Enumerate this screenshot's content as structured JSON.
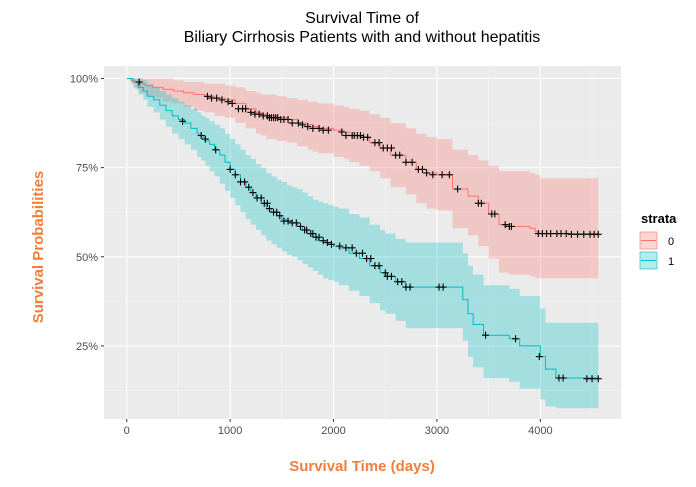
{
  "chart_data": {
    "type": "line",
    "title_line1": "Survival Time of",
    "title_line2": "Biliary Cirrhosis Patients with and without hepatitis",
    "xlabel": "Survival Time (days)",
    "ylabel": "Survival Probabilities",
    "xlim": [
      -220,
      4780
    ],
    "ylim": [
      0.045,
      1.035
    ],
    "x_ticks": [
      0,
      1000,
      2000,
      3000,
      4000
    ],
    "x_tick_labels": [
      "0",
      "1000",
      "2000",
      "3000",
      "4000"
    ],
    "y_ticks": [
      0.25,
      0.5,
      0.75,
      1.0
    ],
    "y_tick_labels": [
      "25%",
      "50%",
      "75%",
      "100%"
    ],
    "grid": true,
    "legend": {
      "title": "strata",
      "position": "right"
    },
    "axis_title_color": "#f07f3c",
    "series": [
      {
        "name": "0",
        "color": "#f8766d",
        "x": [
          0,
          40,
          80,
          130,
          180,
          250,
          350,
          450,
          550,
          650,
          750,
          850,
          950,
          1050,
          1150,
          1250,
          1300,
          1350,
          1450,
          1550,
          1650,
          1750,
          1800,
          1850,
          2000,
          2100,
          2150,
          2250,
          2350,
          2450,
          2550,
          2700,
          2800,
          2900,
          3000,
          3150,
          3300,
          3400,
          3500,
          3600,
          3700,
          3900,
          3950,
          4000,
          4560
        ],
        "y": [
          1.0,
          0.995,
          0.99,
          0.985,
          0.98,
          0.975,
          0.97,
          0.965,
          0.96,
          0.955,
          0.95,
          0.945,
          0.94,
          0.93,
          0.915,
          0.905,
          0.9,
          0.895,
          0.89,
          0.885,
          0.875,
          0.87,
          0.865,
          0.86,
          0.855,
          0.85,
          0.84,
          0.835,
          0.82,
          0.805,
          0.785,
          0.765,
          0.745,
          0.735,
          0.73,
          0.69,
          0.67,
          0.65,
          0.62,
          0.59,
          0.585,
          0.58,
          0.57,
          0.565,
          0.563
        ],
        "lower": [
          1.0,
          0.985,
          0.97,
          0.96,
          0.95,
          0.945,
          0.935,
          0.93,
          0.92,
          0.91,
          0.905,
          0.895,
          0.89,
          0.875,
          0.86,
          0.845,
          0.84,
          0.83,
          0.825,
          0.82,
          0.81,
          0.8,
          0.795,
          0.79,
          0.78,
          0.775,
          0.765,
          0.755,
          0.74,
          0.72,
          0.695,
          0.675,
          0.65,
          0.635,
          0.63,
          0.58,
          0.56,
          0.53,
          0.495,
          0.455,
          0.45,
          0.445,
          0.44,
          0.44,
          0.44
        ],
        "upper": [
          1.0,
          1.0,
          1.0,
          1.0,
          1.0,
          1.0,
          1.0,
          0.995,
          0.99,
          0.99,
          0.985,
          0.985,
          0.98,
          0.975,
          0.965,
          0.96,
          0.955,
          0.955,
          0.95,
          0.945,
          0.94,
          0.935,
          0.935,
          0.93,
          0.925,
          0.92,
          0.915,
          0.91,
          0.9,
          0.89,
          0.875,
          0.86,
          0.845,
          0.835,
          0.83,
          0.8,
          0.785,
          0.77,
          0.755,
          0.74,
          0.74,
          0.735,
          0.73,
          0.72,
          0.72
        ],
        "censor_x": [
          780,
          820,
          870,
          920,
          980,
          1020,
          1080,
          1120,
          1150,
          1200,
          1240,
          1280,
          1320,
          1360,
          1380,
          1400,
          1420,
          1440,
          1460,
          1490,
          1520,
          1560,
          1600,
          1660,
          1700,
          1750,
          1800,
          1860,
          1900,
          1950,
          2080,
          2120,
          2180,
          2200,
          2230,
          2260,
          2290,
          2330,
          2400,
          2440,
          2480,
          2520,
          2560,
          2600,
          2640,
          2700,
          2760,
          2820,
          2860,
          2900,
          2960,
          3050,
          3120,
          3200,
          3400,
          3430,
          3530,
          3560,
          3660,
          3700,
          3720,
          3980,
          4020,
          4060,
          4100,
          4160,
          4200,
          4250,
          4300,
          4360,
          4420,
          4480,
          4520,
          4560
        ],
        "censor_y": [
          0.95,
          0.945,
          0.945,
          0.94,
          0.935,
          0.93,
          0.915,
          0.915,
          0.915,
          0.905,
          0.9,
          0.9,
          0.895,
          0.895,
          0.89,
          0.89,
          0.89,
          0.89,
          0.89,
          0.885,
          0.885,
          0.885,
          0.875,
          0.875,
          0.87,
          0.865,
          0.86,
          0.86,
          0.855,
          0.855,
          0.85,
          0.84,
          0.84,
          0.84,
          0.84,
          0.84,
          0.835,
          0.835,
          0.82,
          0.82,
          0.805,
          0.805,
          0.805,
          0.785,
          0.785,
          0.765,
          0.765,
          0.745,
          0.745,
          0.735,
          0.73,
          0.73,
          0.73,
          0.69,
          0.65,
          0.65,
          0.62,
          0.62,
          0.59,
          0.585,
          0.585,
          0.565,
          0.565,
          0.565,
          0.565,
          0.565,
          0.565,
          0.565,
          0.563,
          0.563,
          0.563,
          0.563,
          0.563,
          0.563
        ]
      },
      {
        "name": "1",
        "color": "#00bfc4",
        "x": [
          0,
          60,
          110,
          160,
          200,
          260,
          320,
          380,
          440,
          500,
          560,
          620,
          680,
          720,
          760,
          800,
          850,
          900,
          950,
          1000,
          1050,
          1100,
          1150,
          1200,
          1250,
          1300,
          1350,
          1400,
          1450,
          1500,
          1550,
          1600,
          1650,
          1700,
          1750,
          1800,
          1850,
          1900,
          1950,
          2000,
          2050,
          2150,
          2250,
          2350,
          2450,
          2500,
          2600,
          2700,
          3000,
          3250,
          3300,
          3350,
          3450,
          3700,
          3800,
          4000,
          4050,
          4150,
          4560
        ],
        "y": [
          1.0,
          0.99,
          0.975,
          0.965,
          0.95,
          0.94,
          0.925,
          0.91,
          0.895,
          0.885,
          0.875,
          0.86,
          0.845,
          0.835,
          0.825,
          0.815,
          0.8,
          0.785,
          0.765,
          0.745,
          0.73,
          0.71,
          0.695,
          0.68,
          0.665,
          0.65,
          0.635,
          0.625,
          0.615,
          0.605,
          0.6,
          0.595,
          0.585,
          0.575,
          0.565,
          0.555,
          0.545,
          0.54,
          0.535,
          0.53,
          0.525,
          0.51,
          0.495,
          0.475,
          0.455,
          0.445,
          0.43,
          0.415,
          0.415,
          0.38,
          0.34,
          0.31,
          0.28,
          0.27,
          0.25,
          0.22,
          0.185,
          0.16,
          0.158
        ],
        "lower": [
          1.0,
          0.975,
          0.955,
          0.94,
          0.92,
          0.905,
          0.885,
          0.865,
          0.845,
          0.83,
          0.815,
          0.8,
          0.78,
          0.77,
          0.755,
          0.74,
          0.725,
          0.705,
          0.685,
          0.665,
          0.645,
          0.625,
          0.605,
          0.59,
          0.575,
          0.56,
          0.545,
          0.535,
          0.525,
          0.515,
          0.505,
          0.5,
          0.49,
          0.48,
          0.47,
          0.46,
          0.45,
          0.44,
          0.435,
          0.43,
          0.42,
          0.405,
          0.39,
          0.37,
          0.35,
          0.34,
          0.32,
          0.3,
          0.3,
          0.265,
          0.22,
          0.19,
          0.16,
          0.15,
          0.13,
          0.1,
          0.08,
          0.075,
          0.075
        ],
        "upper": [
          1.0,
          1.0,
          1.0,
          0.995,
          0.985,
          0.975,
          0.965,
          0.955,
          0.945,
          0.935,
          0.925,
          0.915,
          0.905,
          0.895,
          0.89,
          0.88,
          0.87,
          0.86,
          0.845,
          0.83,
          0.815,
          0.8,
          0.785,
          0.775,
          0.76,
          0.75,
          0.735,
          0.725,
          0.715,
          0.71,
          0.7,
          0.695,
          0.69,
          0.68,
          0.67,
          0.66,
          0.655,
          0.65,
          0.645,
          0.64,
          0.635,
          0.62,
          0.61,
          0.59,
          0.575,
          0.565,
          0.55,
          0.54,
          0.54,
          0.51,
          0.475,
          0.45,
          0.42,
          0.41,
          0.39,
          0.355,
          0.315,
          0.315,
          0.315
        ],
        "censor_x": [
          120,
          540,
          720,
          760,
          860,
          1000,
          1050,
          1100,
          1140,
          1180,
          1220,
          1260,
          1300,
          1330,
          1360,
          1380,
          1420,
          1450,
          1480,
          1520,
          1560,
          1600,
          1640,
          1680,
          1720,
          1740,
          1780,
          1800,
          1830,
          1860,
          1900,
          1940,
          1980,
          2060,
          2120,
          2180,
          2220,
          2280,
          2320,
          2360,
          2400,
          2440,
          2500,
          2520,
          2560,
          2620,
          2660,
          2700,
          2740,
          3020,
          3060,
          3470,
          3760,
          3990,
          4180,
          4220,
          4450,
          4500,
          4560
        ],
        "censor_y": [
          0.99,
          0.88,
          0.84,
          0.83,
          0.8,
          0.745,
          0.73,
          0.71,
          0.71,
          0.695,
          0.68,
          0.665,
          0.665,
          0.65,
          0.65,
          0.635,
          0.625,
          0.625,
          0.615,
          0.6,
          0.6,
          0.595,
          0.595,
          0.585,
          0.575,
          0.575,
          0.565,
          0.565,
          0.555,
          0.555,
          0.545,
          0.54,
          0.535,
          0.53,
          0.525,
          0.525,
          0.51,
          0.51,
          0.495,
          0.495,
          0.475,
          0.475,
          0.455,
          0.445,
          0.445,
          0.43,
          0.43,
          0.415,
          0.415,
          0.415,
          0.415,
          0.28,
          0.27,
          0.22,
          0.16,
          0.16,
          0.158,
          0.158,
          0.158
        ]
      }
    ]
  }
}
